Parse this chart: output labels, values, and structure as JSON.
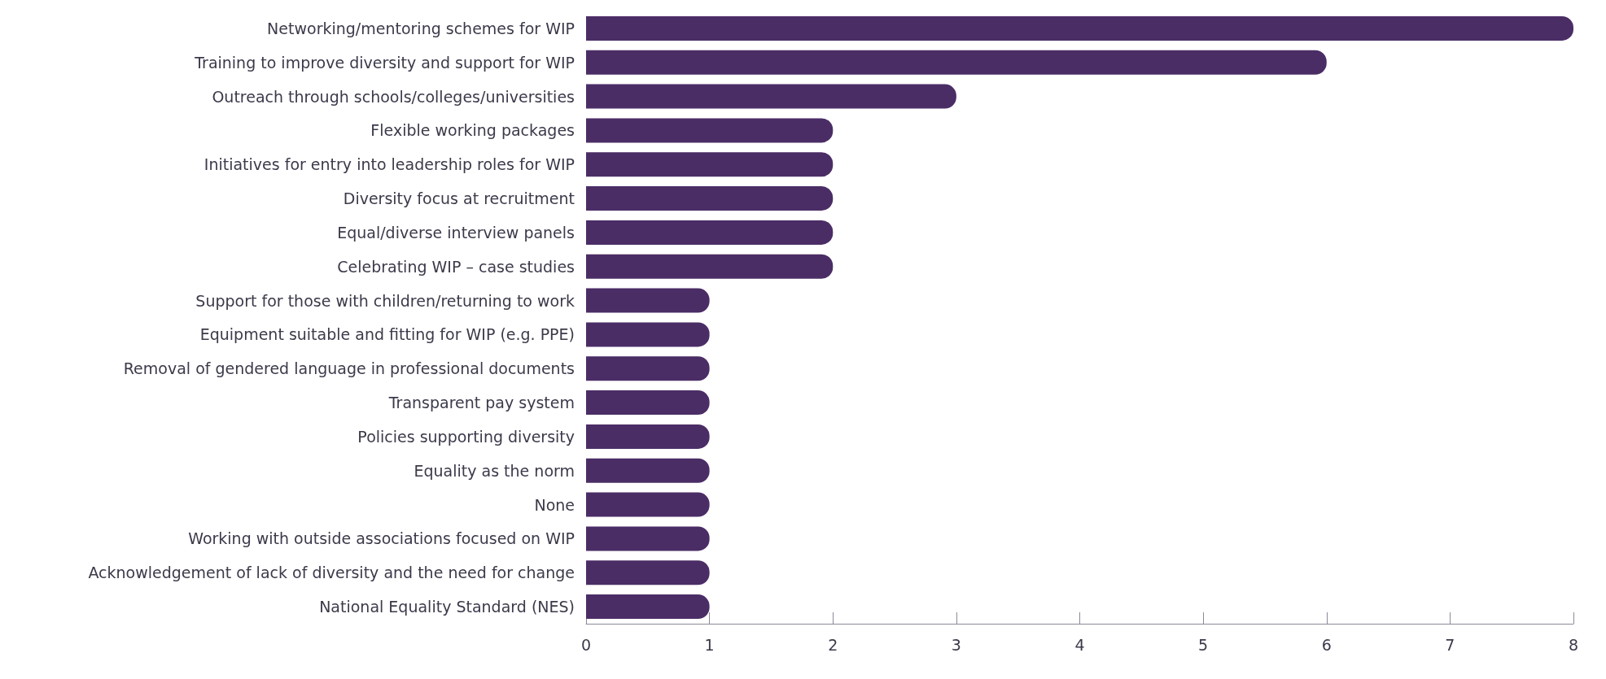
{
  "chart_data": {
    "type": "bar",
    "orientation": "horizontal",
    "categories": [
      "Networking/mentoring schemes for WIP",
      "Training to improve diversity and support for WIP",
      "Outreach through schools/colleges/universities",
      "Flexible working packages",
      "Initiatives for entry into leadership roles for WIP",
      "Diversity focus at recruitment",
      "Equal/diverse interview panels",
      "Celebrating WIP – case studies",
      "Support for those with children/returning to work",
      "Equipment suitable and fitting for WIP (e.g. PPE)",
      "Removal of gendered language in professional documents",
      "Transparent pay system",
      "Policies supporting diversity",
      "Equality as the norm",
      "None",
      "Working with outside associations focused on WIP",
      "Acknowledgement of lack of diversity and the need for change",
      "National Equality Standard (NES)"
    ],
    "values": [
      8,
      6,
      3,
      2,
      2,
      2,
      2,
      2,
      1,
      1,
      1,
      1,
      1,
      1,
      1,
      1,
      1,
      1
    ],
    "color": "#4b2d66",
    "xlim": [
      0,
      8
    ],
    "xticks": [
      0,
      1,
      2,
      3,
      4,
      5,
      6,
      7,
      8
    ]
  }
}
